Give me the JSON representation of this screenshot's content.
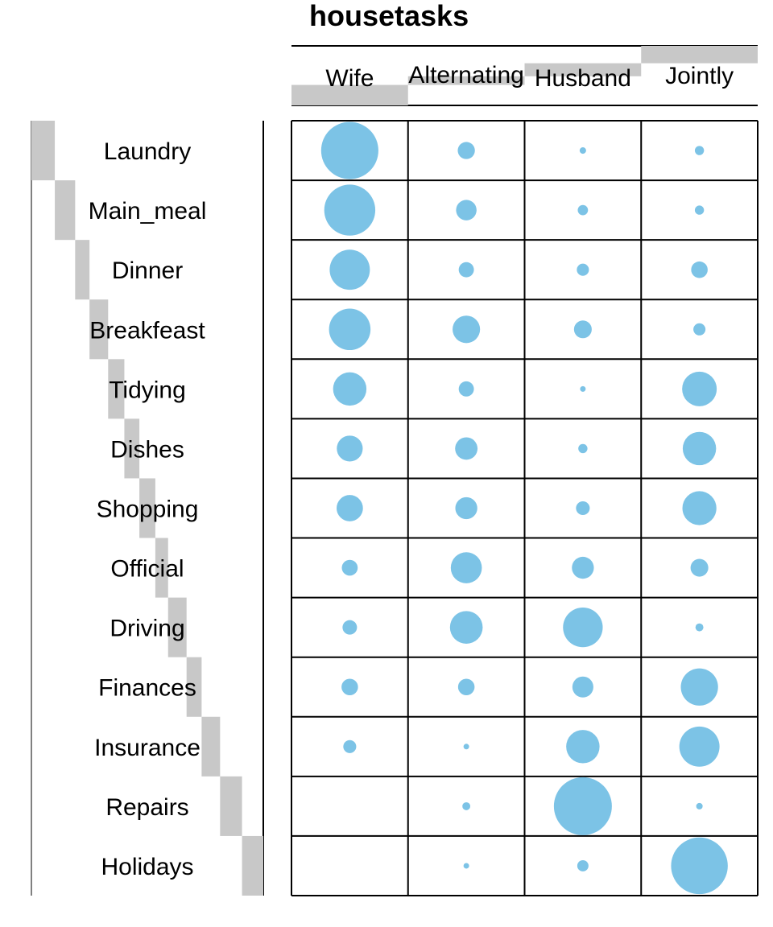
{
  "chart_data": {
    "type": "balloon",
    "title": "housetasks",
    "columns": [
      "Wife",
      "Alternating",
      "Husband",
      "Jointly"
    ],
    "rows": [
      "Laundry",
      "Main_meal",
      "Dinner",
      "Breakfeast",
      "Tidying",
      "Dishes",
      "Shopping",
      "Official",
      "Driving",
      "Finances",
      "Insurance",
      "Repairs",
      "Holidays"
    ],
    "values": [
      [
        156,
        14,
        2,
        4
      ],
      [
        124,
        20,
        5,
        4
      ],
      [
        77,
        11,
        7,
        13
      ],
      [
        82,
        36,
        15,
        7
      ],
      [
        53,
        11,
        1,
        57
      ],
      [
        32,
        24,
        4,
        53
      ],
      [
        33,
        23,
        9,
        55
      ],
      [
        12,
        46,
        23,
        15
      ],
      [
        10,
        51,
        75,
        3
      ],
      [
        13,
        13,
        21,
        66
      ],
      [
        8,
        1,
        53,
        77
      ],
      [
        0,
        3,
        160,
        2
      ],
      [
        0,
        1,
        6,
        153
      ]
    ],
    "point_color": "#7cc3e6",
    "grid": true,
    "legend": "none",
    "dendrogram_bar_color": "#c8c8c8"
  }
}
